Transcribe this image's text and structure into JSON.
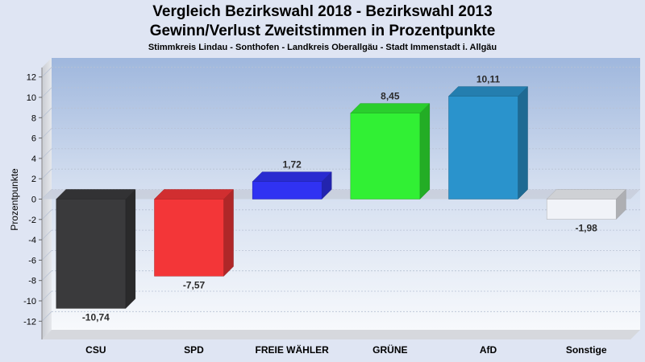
{
  "header": {
    "title_line1": "Vergleich Bezirkswahl 2018 - Bezirkswahl 2013",
    "title_line2": "Gewinn/Verlust Zweitstimmen in Prozentpunkte",
    "subtitle": "Stimmkreis Lindau - Sonthofen - Landkreis Oberallgäu - Stadt Immenstadt i. Allgäu"
  },
  "chart_data": {
    "type": "bar",
    "title": "Vergleich Bezirkswahl 2018 - Bezirkswahl 2013 / Gewinn/Verlust Zweitstimmen in Prozentpunkte",
    "subtitle": "Stimmkreis Lindau - Sonthofen - Landkreis Oberallgäu - Stadt Immenstadt i. Allgäu",
    "ylabel": "Prozentpunkte",
    "xlabel": "",
    "ylim": [
      -13,
      13.5
    ],
    "yticks": [
      12,
      10,
      8,
      6,
      4,
      2,
      0,
      -2,
      -4,
      -6,
      -8,
      -10,
      -12
    ],
    "grid": true,
    "categories": [
      "CSU",
      "SPD",
      "FREIE WÄHLER",
      "GRÜNE",
      "AfD",
      "Sonstige"
    ],
    "values": [
      -10.74,
      -7.57,
      1.72,
      8.45,
      10.11,
      -1.98
    ],
    "value_labels": [
      "-10,74",
      "-7,57",
      "1,72",
      "8,45",
      "10,11",
      "-1,98"
    ],
    "colors": [
      "#3a3a3c",
      "#f33638",
      "#3032f2",
      "#31f034",
      "#2a93cc",
      "#f1f3f8"
    ]
  }
}
